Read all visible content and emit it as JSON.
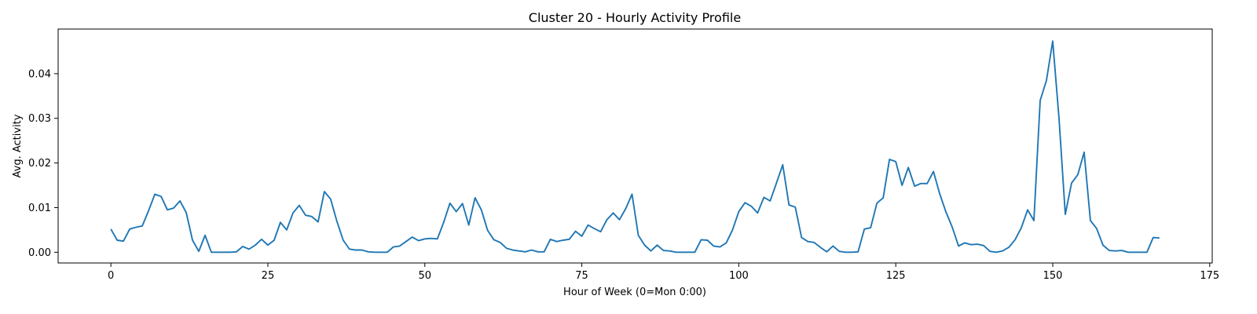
{
  "chart_data": {
    "type": "line",
    "title": "Cluster 20 - Hourly Activity Profile",
    "xlabel": "Hour of Week (0=Mon 0:00)",
    "ylabel": "Avg. Activity",
    "xlim": [
      -8.4,
      175.4
    ],
    "ylim": [
      -0.0024,
      0.05
    ],
    "xticks": [
      0,
      25,
      50,
      75,
      100,
      125,
      150,
      175
    ],
    "xtick_labels": [
      "0",
      "25",
      "50",
      "75",
      "100",
      "125",
      "150",
      "175"
    ],
    "yticks": [
      0.0,
      0.01,
      0.02,
      0.03,
      0.04
    ],
    "ytick_labels": [
      "0.00",
      "0.01",
      "0.02",
      "0.03",
      "0.04"
    ],
    "grid": false,
    "legend": "none",
    "series": [
      {
        "color": "#1f77b4",
        "x": [
          0,
          1,
          2,
          3,
          4,
          5,
          6,
          7,
          8,
          9,
          10,
          11,
          12,
          13,
          14,
          15,
          16,
          17,
          18,
          19,
          20,
          21,
          22,
          23,
          24,
          25,
          26,
          27,
          28,
          29,
          30,
          31,
          32,
          33,
          34,
          35,
          36,
          37,
          38,
          39,
          40,
          41,
          42,
          43,
          44,
          45,
          46,
          47,
          48,
          49,
          50,
          51,
          52,
          53,
          54,
          55,
          56,
          57,
          58,
          59,
          60,
          61,
          62,
          63,
          64,
          65,
          66,
          67,
          68,
          69,
          70,
          71,
          72,
          73,
          74,
          75,
          76,
          77,
          78,
          79,
          80,
          81,
          82,
          83,
          84,
          85,
          86,
          87,
          88,
          89,
          90,
          91,
          92,
          93,
          94,
          95,
          96,
          97,
          98,
          99,
          100,
          101,
          102,
          103,
          104,
          105,
          106,
          107,
          108,
          109,
          110,
          111,
          112,
          113,
          114,
          115,
          116,
          117,
          118,
          119,
          120,
          121,
          122,
          123,
          124,
          125,
          126,
          127,
          128,
          129,
          130,
          131,
          132,
          133,
          134,
          135,
          136,
          137,
          138,
          139,
          140,
          141,
          142,
          143,
          144,
          145,
          146,
          147,
          148,
          149,
          150,
          151,
          152,
          153,
          154,
          155,
          156,
          157,
          158,
          159,
          160,
          161,
          162,
          163,
          164,
          165,
          166,
          167
        ],
        "y": [
          0.0052,
          0.0027,
          0.0025,
          0.0052,
          0.0056,
          0.0059,
          0.0093,
          0.013,
          0.0125,
          0.0095,
          0.0099,
          0.0115,
          0.0089,
          0.0027,
          0.0002,
          0.0038,
          0.0,
          0.0,
          0.0,
          0.0,
          0.0001,
          0.0013,
          0.0007,
          0.0016,
          0.0029,
          0.0016,
          0.0027,
          0.0067,
          0.005,
          0.0088,
          0.0105,
          0.0083,
          0.008,
          0.0068,
          0.0136,
          0.0119,
          0.0069,
          0.0027,
          0.0007,
          0.0005,
          0.0005,
          0.0001,
          0.0,
          0.0,
          0.0,
          0.0012,
          0.0014,
          0.0024,
          0.0034,
          0.0026,
          0.003,
          0.0031,
          0.003,
          0.0067,
          0.011,
          0.0091,
          0.0109,
          0.0061,
          0.0122,
          0.0095,
          0.0049,
          0.0028,
          0.0022,
          0.0009,
          0.0005,
          0.0003,
          0.0001,
          0.0005,
          0.0001,
          0.0001,
          0.0029,
          0.0024,
          0.0027,
          0.0029,
          0.0047,
          0.0036,
          0.0061,
          0.0053,
          0.0046,
          0.0073,
          0.0088,
          0.0073,
          0.0098,
          0.013,
          0.0038,
          0.0016,
          0.0003,
          0.0016,
          0.0004,
          0.0003,
          0.0,
          0.0,
          0.0,
          0.0,
          0.0028,
          0.0027,
          0.0014,
          0.0012,
          0.0021,
          0.005,
          0.0091,
          0.0111,
          0.0103,
          0.0088,
          0.0123,
          0.0115,
          0.0155,
          0.0196,
          0.0106,
          0.0101,
          0.0033,
          0.0024,
          0.0022,
          0.0011,
          0.0001,
          0.0014,
          0.0002,
          0.0,
          0.0,
          0.0001,
          0.0052,
          0.0055,
          0.011,
          0.0122,
          0.0208,
          0.0203,
          0.015,
          0.019,
          0.0148,
          0.0154,
          0.0154,
          0.0181,
          0.0131,
          0.009,
          0.0056,
          0.0014,
          0.0021,
          0.0017,
          0.0018,
          0.0015,
          0.0002,
          0.0,
          0.0003,
          0.0011,
          0.0028,
          0.0055,
          0.0095,
          0.0071,
          0.034,
          0.0385,
          0.0473,
          0.03,
          0.0085,
          0.0155,
          0.0174,
          0.0224,
          0.0071,
          0.0053,
          0.0016,
          0.0004,
          0.0003,
          0.0004,
          0.0,
          0.0,
          0.0,
          0.0,
          0.0033,
          0.0032
        ]
      }
    ]
  }
}
